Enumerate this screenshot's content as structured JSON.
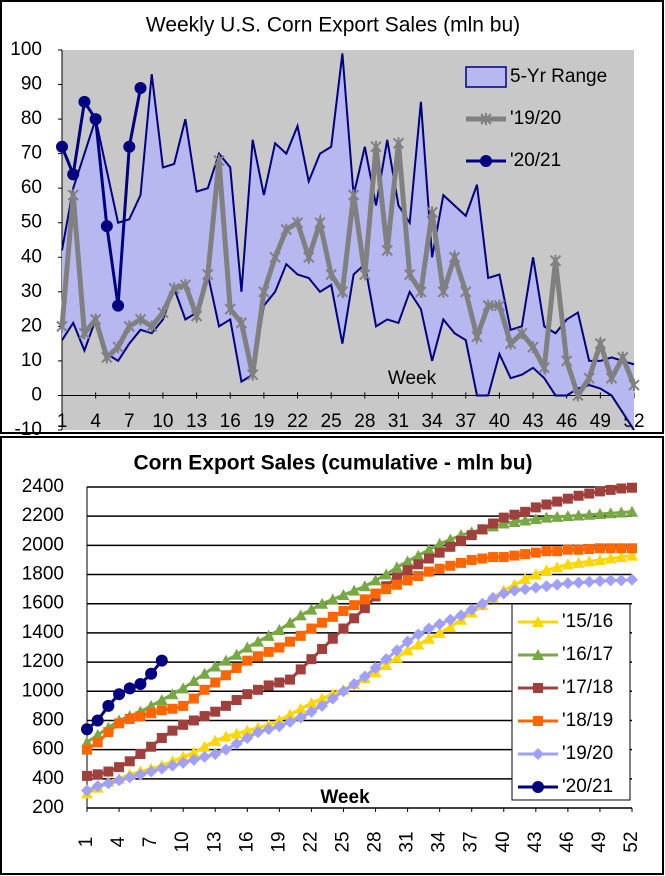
{
  "chart_data": [
    {
      "type": "range-line",
      "title": "Weekly U.S. Corn Export Sales (mln bu)",
      "xlabel": "Week",
      "x": [
        1,
        2,
        3,
        4,
        5,
        6,
        7,
        8,
        9,
        10,
        11,
        12,
        13,
        14,
        15,
        16,
        17,
        18,
        19,
        20,
        21,
        22,
        23,
        24,
        25,
        26,
        27,
        28,
        29,
        30,
        31,
        32,
        33,
        34,
        35,
        36,
        37,
        38,
        39,
        40,
        41,
        42,
        43,
        44,
        45,
        46,
        47,
        48,
        49,
        50,
        51,
        52
      ],
      "xlim": [
        1,
        52
      ],
      "xticks": [
        1,
        4,
        7,
        10,
        13,
        16,
        19,
        22,
        25,
        28,
        31,
        34,
        37,
        40,
        43,
        46,
        49,
        52
      ],
      "ylim": [
        -10,
        100
      ],
      "yticks": [
        -10,
        0,
        10,
        20,
        30,
        40,
        50,
        60,
        70,
        80,
        90,
        100
      ],
      "series": [
        {
          "name": "5-Yr Range",
          "color": "#b8b8f0",
          "line_color": "#000080",
          "high": [
            42,
            60,
            70,
            80,
            65,
            50,
            51,
            58,
            93,
            66,
            67,
            80,
            59,
            60,
            70,
            66,
            30,
            74,
            58,
            73,
            70,
            78,
            62,
            70,
            72,
            99,
            58,
            72,
            55,
            74,
            55,
            50,
            85,
            40,
            58,
            55,
            52,
            61,
            34,
            35,
            19,
            20,
            40,
            20,
            18,
            22,
            24,
            10,
            10,
            11,
            10,
            9
          ],
          "low": [
            16,
            21,
            13,
            22,
            12,
            10,
            15,
            19,
            18,
            22,
            31,
            22,
            24,
            35,
            20,
            22,
            4,
            6,
            26,
            30,
            38,
            35,
            34,
            30,
            32,
            15,
            35,
            38,
            20,
            22,
            21,
            30,
            25,
            10,
            22,
            18,
            16,
            0,
            0,
            12,
            5,
            6,
            8,
            5,
            0,
            0,
            2,
            3,
            2,
            0,
            -5,
            -10
          ]
        },
        {
          "name": "'19/20",
          "color": "#808080",
          "marker": "star",
          "values": [
            20,
            58,
            18,
            22,
            11,
            14,
            20,
            22,
            20,
            24,
            31,
            32,
            23,
            35,
            68,
            25,
            21,
            6,
            30,
            40,
            48,
            50,
            40,
            50,
            35,
            30,
            58,
            35,
            72,
            42,
            73,
            35,
            30,
            53,
            30,
            40,
            30,
            17,
            26,
            26,
            15,
            18,
            14,
            8,
            39,
            10,
            0,
            5,
            15,
            5,
            11,
            3
          ]
        },
        {
          "name": "'20/21",
          "color": "#000080",
          "marker": "circle",
          "values": [
            72,
            64,
            85,
            80,
            49,
            26,
            72,
            89,
            null,
            null,
            null,
            null,
            null,
            null,
            null,
            null,
            null,
            null,
            null,
            null,
            null,
            null,
            null,
            null,
            null,
            null,
            null,
            null,
            null,
            null,
            null,
            null,
            null,
            null,
            null,
            null,
            null,
            null,
            null,
            null,
            null,
            null,
            null,
            null,
            null,
            null,
            null,
            null,
            null,
            null,
            null,
            null
          ]
        }
      ]
    },
    {
      "type": "line",
      "title": "Corn Export Sales (cumulative - mln bu)",
      "xlabel": "Week",
      "x": [
        1,
        2,
        3,
        4,
        5,
        6,
        7,
        8,
        9,
        10,
        11,
        12,
        13,
        14,
        15,
        16,
        17,
        18,
        19,
        20,
        21,
        22,
        23,
        24,
        25,
        26,
        27,
        28,
        29,
        30,
        31,
        32,
        33,
        34,
        35,
        36,
        37,
        38,
        39,
        40,
        41,
        42,
        43,
        44,
        45,
        46,
        47,
        48,
        49,
        50,
        51,
        52
      ],
      "xlim": [
        1,
        52
      ],
      "xticks": [
        1,
        4,
        7,
        10,
        13,
        16,
        19,
        22,
        25,
        28,
        31,
        34,
        37,
        40,
        43,
        46,
        49,
        52
      ],
      "ylim": [
        200,
        2400
      ],
      "yticks": [
        200,
        400,
        600,
        800,
        1000,
        1200,
        1400,
        1600,
        1800,
        2000,
        2200,
        2400
      ],
      "grid": true,
      "series": [
        {
          "name": "'15/16",
          "color": "#ffd700",
          "marker": "triangle",
          "values": [
            300,
            340,
            380,
            400,
            430,
            450,
            470,
            490,
            520,
            550,
            580,
            620,
            660,
            690,
            710,
            730,
            750,
            770,
            800,
            840,
            880,
            920,
            950,
            980,
            1010,
            1050,
            1090,
            1130,
            1180,
            1230,
            1280,
            1320,
            1360,
            1400,
            1440,
            1490,
            1540,
            1590,
            1640,
            1690,
            1730,
            1770,
            1800,
            1830,
            1850,
            1870,
            1880,
            1890,
            1900,
            1910,
            1920,
            1930
          ]
        },
        {
          "name": "'16/17",
          "color": "#77a844",
          "marker": "triangle",
          "values": [
            650,
            700,
            750,
            800,
            830,
            860,
            900,
            940,
            980,
            1020,
            1070,
            1120,
            1170,
            1210,
            1250,
            1300,
            1340,
            1380,
            1420,
            1470,
            1520,
            1560,
            1600,
            1630,
            1660,
            1690,
            1720,
            1760,
            1800,
            1850,
            1890,
            1930,
            1970,
            2010,
            2040,
            2070,
            2090,
            2110,
            2130,
            2150,
            2160,
            2170,
            2180,
            2190,
            2195,
            2200,
            2205,
            2210,
            2215,
            2220,
            2225,
            2230
          ]
        },
        {
          "name": "'17/18",
          "color": "#a0403c",
          "marker": "square",
          "values": [
            420,
            430,
            450,
            480,
            520,
            570,
            620,
            680,
            730,
            770,
            800,
            830,
            860,
            900,
            940,
            980,
            1010,
            1040,
            1060,
            1080,
            1150,
            1220,
            1290,
            1360,
            1430,
            1500,
            1570,
            1650,
            1720,
            1780,
            1830,
            1870,
            1910,
            1950,
            1990,
            2030,
            2070,
            2110,
            2150,
            2190,
            2210,
            2230,
            2260,
            2280,
            2300,
            2320,
            2340,
            2355,
            2370,
            2380,
            2390,
            2395
          ]
        },
        {
          "name": "'18/19",
          "color": "#ff6600",
          "marker": "square",
          "values": [
            600,
            650,
            720,
            780,
            810,
            830,
            850,
            870,
            880,
            900,
            950,
            1010,
            1060,
            1110,
            1160,
            1210,
            1240,
            1270,
            1300,
            1340,
            1380,
            1430,
            1470,
            1510,
            1550,
            1590,
            1630,
            1670,
            1700,
            1730,
            1760,
            1790,
            1820,
            1840,
            1860,
            1880,
            1900,
            1910,
            1920,
            1920,
            1930,
            1940,
            1950,
            1960,
            1960,
            1970,
            1970,
            1975,
            1980,
            1980,
            1980,
            1980
          ]
        },
        {
          "name": "'19/20",
          "color": "#a0a0f8",
          "marker": "diamond",
          "values": [
            320,
            350,
            370,
            390,
            410,
            430,
            450,
            470,
            490,
            510,
            530,
            550,
            570,
            600,
            640,
            680,
            720,
            740,
            760,
            790,
            820,
            860,
            900,
            950,
            1000,
            1050,
            1100,
            1160,
            1220,
            1280,
            1340,
            1390,
            1430,
            1460,
            1490,
            1520,
            1560,
            1600,
            1640,
            1670,
            1690,
            1700,
            1710,
            1720,
            1730,
            1740,
            1745,
            1750,
            1755,
            1760,
            1760,
            1765
          ]
        },
        {
          "name": "'20/21",
          "color": "#000080",
          "marker": "circle",
          "values": [
            740,
            800,
            900,
            980,
            1020,
            1050,
            1120,
            1210,
            null,
            null,
            null,
            null,
            null,
            null,
            null,
            null,
            null,
            null,
            null,
            null,
            null,
            null,
            null,
            null,
            null,
            null,
            null,
            null,
            null,
            null,
            null,
            null,
            null,
            null,
            null,
            null,
            null,
            null,
            null,
            null,
            null,
            null,
            null,
            null,
            null,
            null,
            null,
            null,
            null,
            null,
            null,
            null
          ]
        }
      ]
    }
  ]
}
